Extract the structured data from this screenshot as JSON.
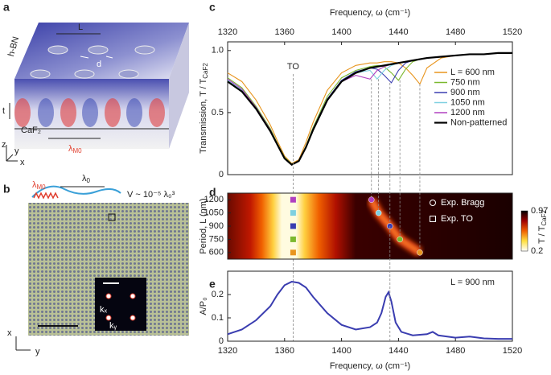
{
  "figure": {
    "panel_labels": [
      "a",
      "b",
      "c",
      "d",
      "e"
    ],
    "panel_a": {
      "L": "L",
      "d": "d",
      "hbn": "h-BN",
      "t": "t",
      "z": "z",
      "y": "y",
      "x": "x",
      "caf2": "CaF₂",
      "lambda": "λ",
      "lambda_sub": "M0"
    },
    "panel_b": {
      "lambda": "λ",
      "lambda0_sub": "0",
      "lambdaM0_sub": "M0",
      "volume": "V ~ 10⁻⁵ λ₀³",
      "kx": "kₓ",
      "ky": "kᵧ",
      "x": "x",
      "y": "y"
    }
  },
  "chart_data": [
    {
      "type": "line",
      "panel": "c",
      "xlabel": "Frequency, ω (cm⁻¹)",
      "ylabel": "Transmission, T / T",
      "ylabel_sub": "CaF2",
      "x": [
        1320,
        1330,
        1340,
        1350,
        1355,
        1360,
        1365,
        1370,
        1375,
        1380,
        1390,
        1400,
        1410,
        1420,
        1425,
        1430,
        1435,
        1440,
        1445,
        1450,
        1455,
        1460,
        1470,
        1480,
        1490,
        1500,
        1510,
        1520
      ],
      "xlim": [
        1320,
        1520
      ],
      "xticks": [
        1320,
        1360,
        1400,
        1440,
        1480,
        1520
      ],
      "ylim": [
        0,
        1.07
      ],
      "yticks": [
        0,
        0.5,
        {
          "value": 1,
          "label": "1.0"
        }
      ],
      "legend": "right",
      "annotation": {
        "text": "TO",
        "x": 1366
      },
      "series": [
        {
          "name": "L = 600 nm",
          "color": "#e8951e",
          "values": [
            0.82,
            0.75,
            0.6,
            0.4,
            0.27,
            0.15,
            0.09,
            0.12,
            0.26,
            0.42,
            0.68,
            0.82,
            0.88,
            0.9,
            0.9,
            0.91,
            0.91,
            0.9,
            0.86,
            0.8,
            0.73,
            0.86,
            0.94,
            0.96,
            0.97,
            0.97,
            0.98,
            0.98
          ]
        },
        {
          "name": "750 nm",
          "color": "#7cb82f",
          "values": [
            0.78,
            0.7,
            0.55,
            0.37,
            0.25,
            0.14,
            0.085,
            0.11,
            0.23,
            0.38,
            0.63,
            0.78,
            0.84,
            0.87,
            0.88,
            0.87,
            0.82,
            0.76,
            0.85,
            0.91,
            0.93,
            0.94,
            0.95,
            0.96,
            0.97,
            0.97,
            0.98,
            0.98
          ]
        },
        {
          "name": "900 nm",
          "color": "#3a3db0",
          "values": [
            0.76,
            0.68,
            0.54,
            0.36,
            0.24,
            0.13,
            0.08,
            0.11,
            0.22,
            0.37,
            0.61,
            0.76,
            0.83,
            0.86,
            0.85,
            0.8,
            0.74,
            0.84,
            0.9,
            0.92,
            0.93,
            0.94,
            0.95,
            0.96,
            0.97,
            0.97,
            0.98,
            0.98
          ]
        },
        {
          "name": "1050 nm",
          "color": "#7fd0e0",
          "values": [
            0.76,
            0.68,
            0.53,
            0.35,
            0.24,
            0.13,
            0.08,
            0.11,
            0.22,
            0.36,
            0.6,
            0.75,
            0.82,
            0.84,
            0.77,
            0.84,
            0.88,
            0.9,
            0.91,
            0.92,
            0.93,
            0.94,
            0.95,
            0.96,
            0.97,
            0.97,
            0.98,
            0.98
          ]
        },
        {
          "name": "1200 nm",
          "color": "#b040c0",
          "values": [
            0.77,
            0.69,
            0.54,
            0.36,
            0.24,
            0.13,
            0.08,
            0.11,
            0.22,
            0.36,
            0.6,
            0.75,
            0.8,
            0.77,
            0.84,
            0.87,
            0.89,
            0.9,
            0.91,
            0.92,
            0.93,
            0.94,
            0.95,
            0.96,
            0.97,
            0.97,
            0.98,
            0.98
          ]
        },
        {
          "name": "Non-patterned",
          "color": "#000000",
          "values": [
            0.75,
            0.67,
            0.53,
            0.35,
            0.24,
            0.13,
            0.08,
            0.11,
            0.22,
            0.36,
            0.6,
            0.75,
            0.82,
            0.86,
            0.87,
            0.88,
            0.89,
            0.9,
            0.91,
            0.92,
            0.93,
            0.94,
            0.95,
            0.96,
            0.97,
            0.97,
            0.98,
            0.98
          ]
        }
      ]
    },
    {
      "type": "heatmap",
      "panel": "d",
      "ylabel": "Period, L (nm)",
      "xlim": [
        1320,
        1520
      ],
      "ylim": [
        525,
        1275
      ],
      "yticks": [
        600,
        750,
        900,
        1050,
        1200
      ],
      "colorbar": {
        "ticks": [
          0.97,
          0.2
        ],
        "label": "T / T",
        "label_sub": "CaF2"
      },
      "series": [
        {
          "name": "Exp. Bragg",
          "marker": "circle",
          "x": [
            1455,
            1441,
            1434,
            1426,
            1421
          ],
          "values": [
            600,
            750,
            900,
            1050,
            1200
          ],
          "colors": [
            "#e8951e",
            "#7cb82f",
            "#3a3db0",
            "#7fd0e0",
            "#b040c0"
          ]
        },
        {
          "name": "Exp. TO",
          "marker": "square",
          "x": [
            1366,
            1366,
            1366,
            1366,
            1366
          ],
          "values": [
            600,
            750,
            900,
            1050,
            1200
          ],
          "colors": [
            "#e8951e",
            "#7cb82f",
            "#3a3db0",
            "#7fd0e0",
            "#b040c0"
          ]
        }
      ]
    },
    {
      "type": "line",
      "panel": "e",
      "xlabel": "Frequency, ω (cm⁻¹)",
      "ylabel": "A/P₀",
      "x": [
        1320,
        1330,
        1340,
        1350,
        1355,
        1360,
        1365,
        1370,
        1375,
        1380,
        1390,
        1400,
        1410,
        1420,
        1425,
        1428,
        1431,
        1433,
        1435,
        1438,
        1442,
        1450,
        1460,
        1464,
        1468,
        1480,
        1490,
        1500,
        1510,
        1520
      ],
      "xlim": [
        1320,
        1520
      ],
      "xticks": [
        1320,
        1360,
        1400,
        1440,
        1480,
        1520
      ],
      "ylim": [
        0,
        0.3
      ],
      "yticks": [
        0,
        0.1,
        0.2
      ],
      "annotation": {
        "text": "L = 900 nm"
      },
      "series": [
        {
          "color": "#3a3db0",
          "values": [
            0.03,
            0.05,
            0.09,
            0.15,
            0.2,
            0.24,
            0.255,
            0.25,
            0.23,
            0.19,
            0.12,
            0.07,
            0.05,
            0.06,
            0.08,
            0.12,
            0.19,
            0.21,
            0.17,
            0.08,
            0.04,
            0.025,
            0.03,
            0.04,
            0.025,
            0.015,
            0.02,
            0.012,
            0.01,
            0.01
          ]
        }
      ]
    }
  ]
}
